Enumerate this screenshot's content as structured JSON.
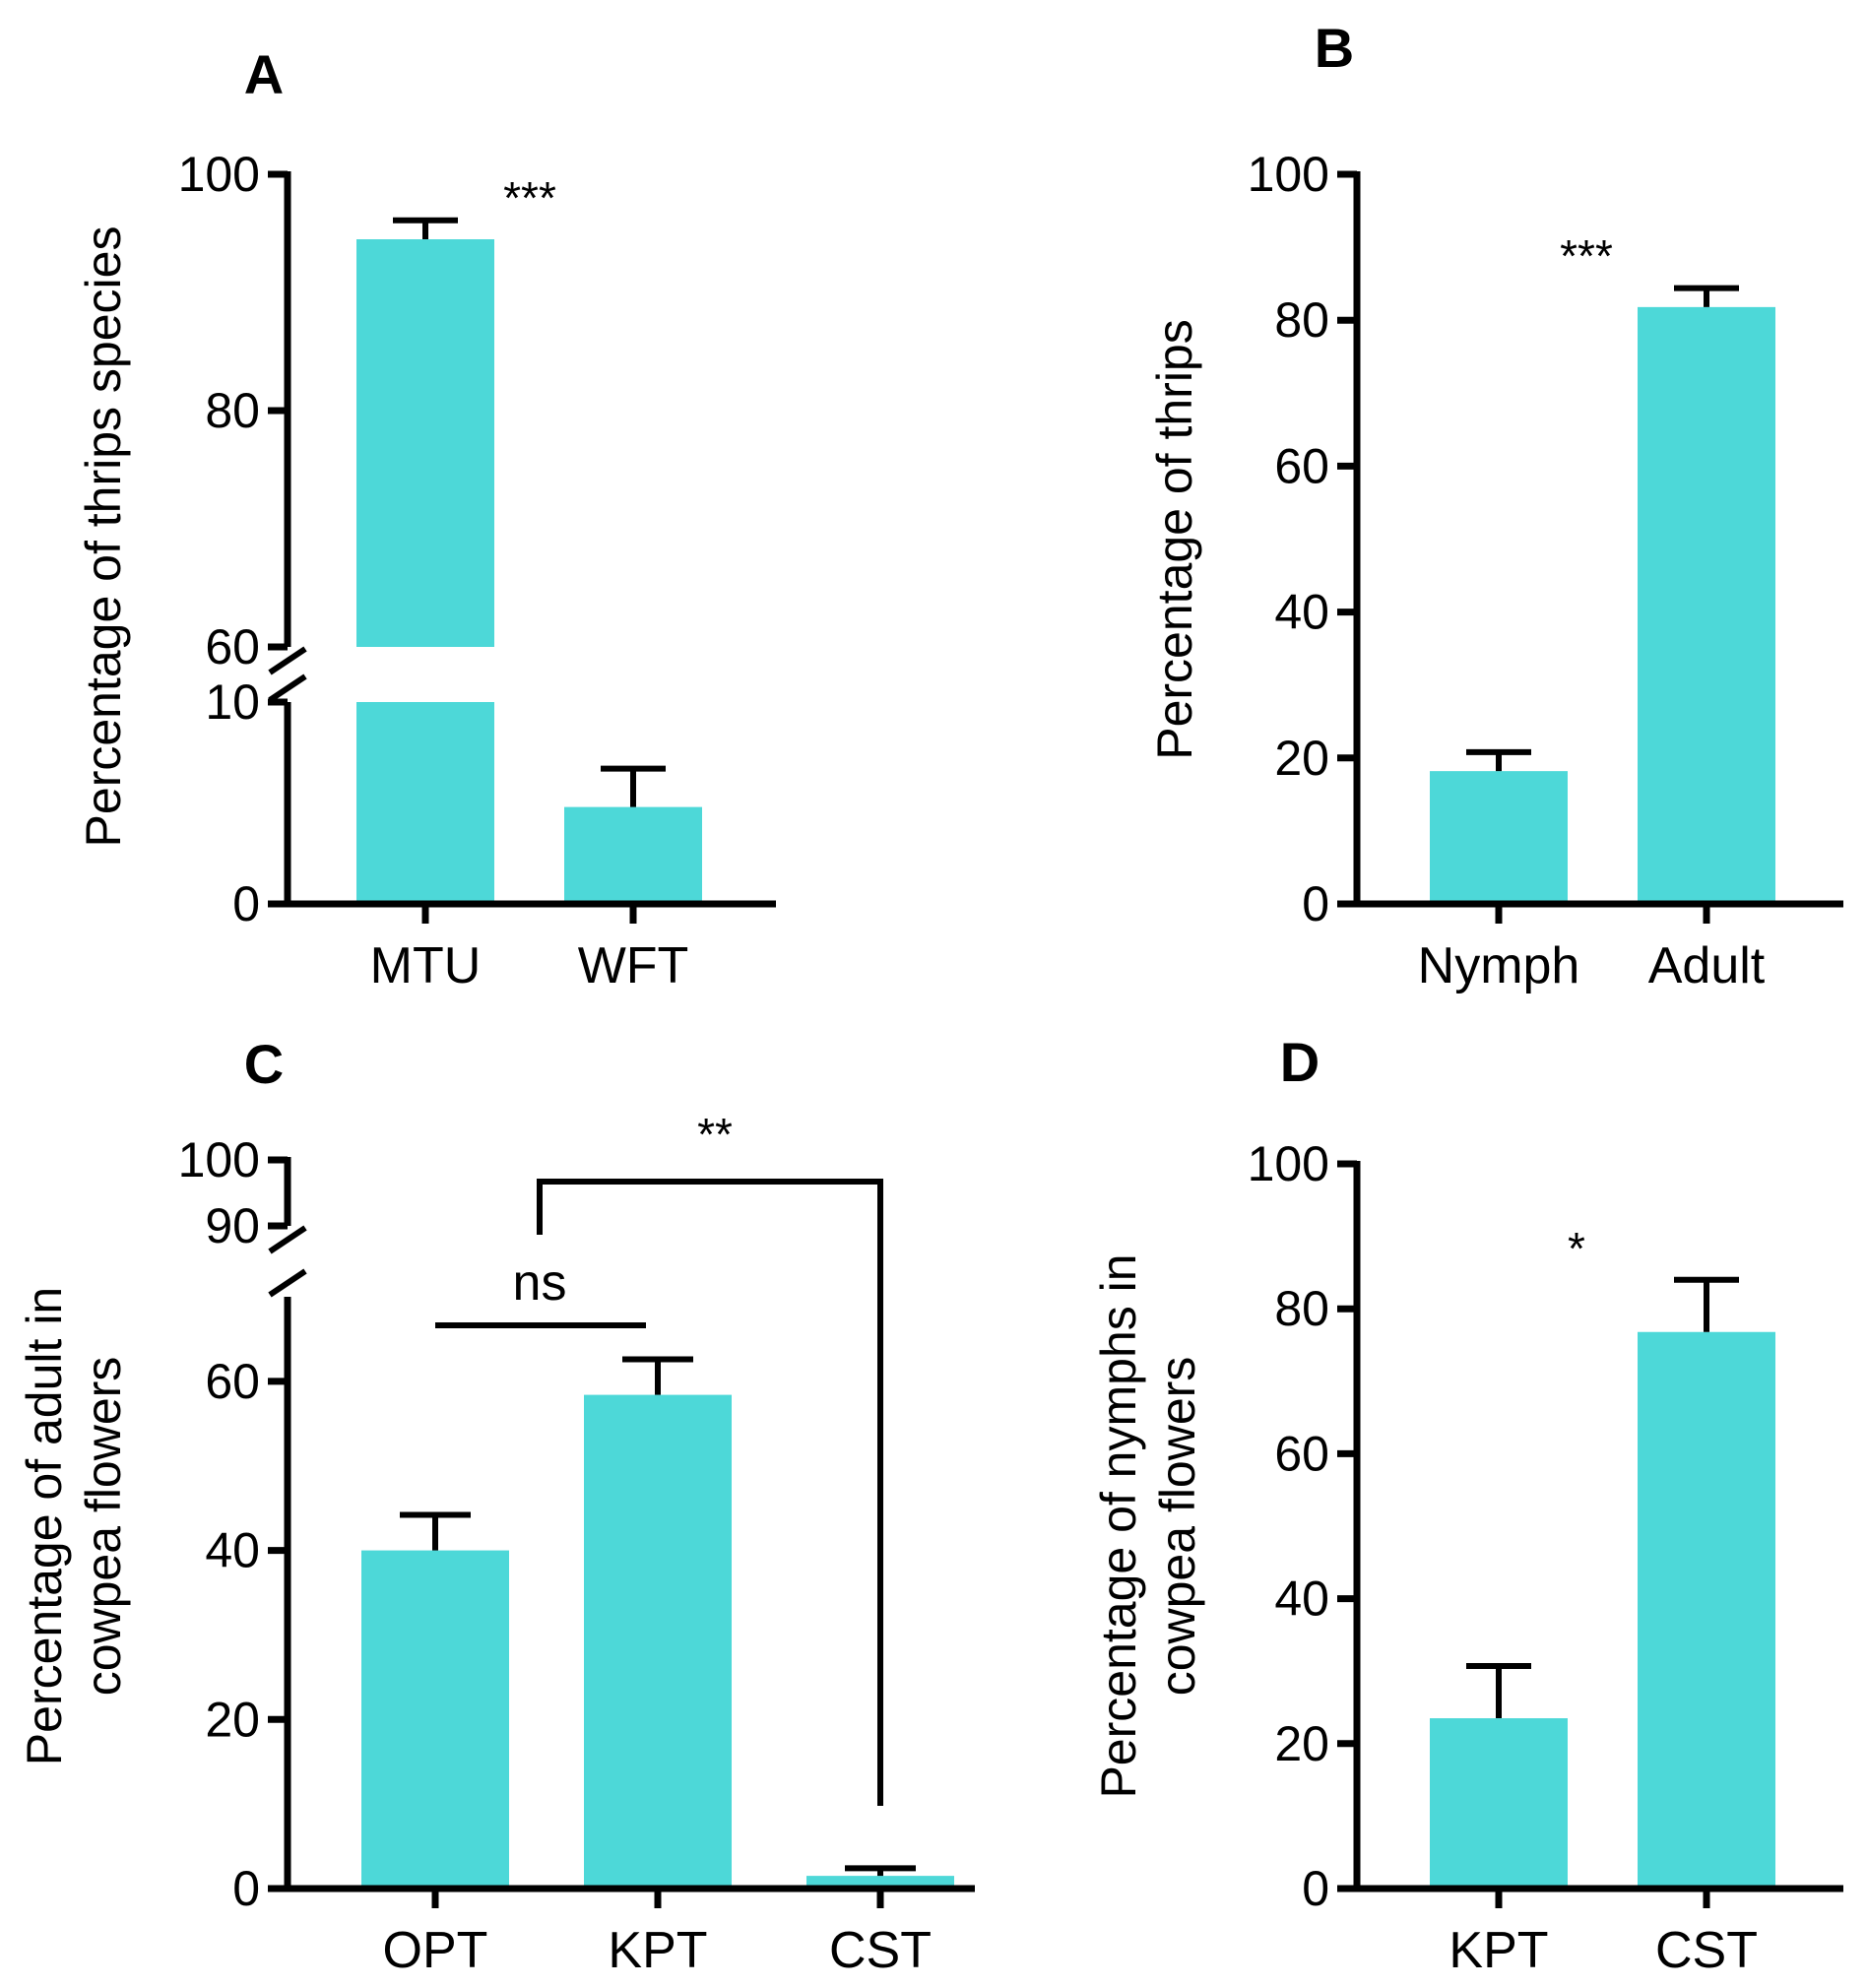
{
  "bar_color": "#4dd8d8",
  "axis_color": "#000000",
  "chart_data": [
    {
      "panel": "A",
      "type": "bar",
      "categories": [
        "MTU",
        "WFT"
      ],
      "values": [
        94.5,
        4.8
      ],
      "error": [
        1.6,
        1.9
      ],
      "ylabel": "Percentage of thrips species",
      "ylim": [
        0,
        100
      ],
      "axis_break": [
        10,
        60
      ],
      "yticks": [
        0,
        10,
        60,
        80,
        100
      ],
      "significance": [
        "***"
      ]
    },
    {
      "panel": "B",
      "type": "bar",
      "categories": [
        "Nymph",
        "Adult"
      ],
      "values": [
        18.2,
        81.8
      ],
      "error": [
        2.6,
        2.6
      ],
      "ylabel": "Percentage of thrips",
      "ylim": [
        0,
        100
      ],
      "yticks": [
        0,
        20,
        40,
        60,
        80,
        100
      ],
      "significance": [
        "***"
      ]
    },
    {
      "panel": "C",
      "type": "bar",
      "categories": [
        "OPT",
        "KPT",
        "CST"
      ],
      "values": [
        40.0,
        58.4,
        1.5
      ],
      "error": [
        4.2,
        4.2,
        0.9
      ],
      "ylabel": "Percentage of adult in\ncowpea flowers",
      "ylim": [
        0,
        100
      ],
      "axis_break": [
        70,
        90
      ],
      "yticks": [
        0,
        20,
        40,
        60,
        90,
        100
      ],
      "significance": [
        "ns",
        "**"
      ]
    },
    {
      "panel": "D",
      "type": "bar",
      "categories": [
        "KPT",
        "CST"
      ],
      "values": [
        23.5,
        76.8
      ],
      "error": [
        7.2,
        7.2
      ],
      "ylabel": "Percentage of nymphs in\ncowpea flowers",
      "ylim": [
        0,
        100
      ],
      "yticks": [
        0,
        20,
        40,
        60,
        80,
        100
      ],
      "significance": [
        "*"
      ]
    }
  ]
}
